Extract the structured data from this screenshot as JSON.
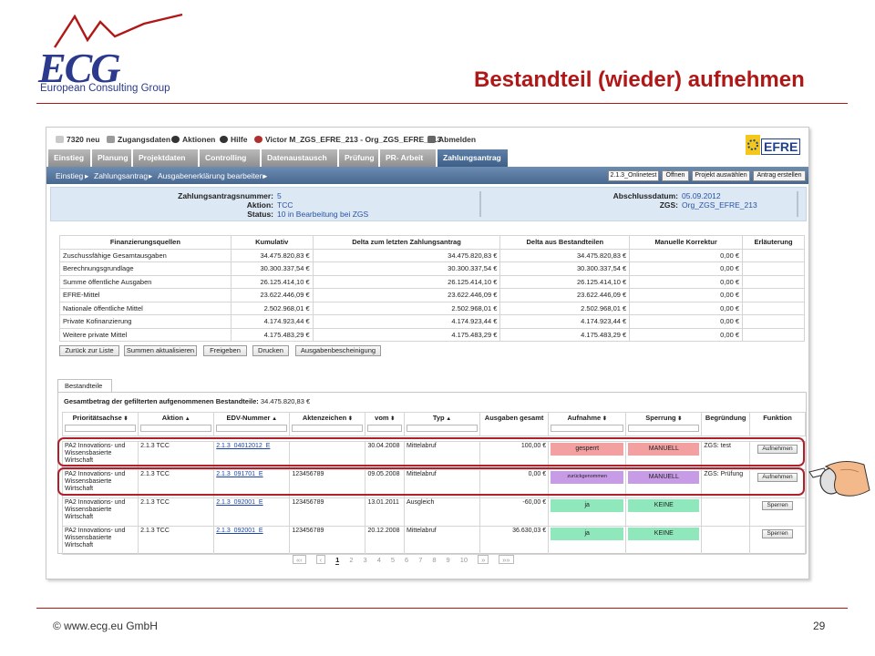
{
  "slide": {
    "title": "Bestandteil (wieder) aufnehmen",
    "footer_left": "© www.ecg.eu GmbH",
    "page_number": "29",
    "title_color": "#b01818"
  },
  "logo": {
    "letters": "ECG",
    "subtitle": "European Consulting Group"
  },
  "topbar": {
    "messages": "7320 neu",
    "zugangsdaten": "Zugangsdaten",
    "aktionen": "Aktionen",
    "hilfe": "Hilfe",
    "user": "Victor M_ZGS_EFRE_213 - Org_ZGS_EFRE_213",
    "abmelden": "Abmelden",
    "efre_logo": "EFRE"
  },
  "tabs": [
    {
      "label": "Einstieg"
    },
    {
      "label": "Planung"
    },
    {
      "label": "Projektdaten"
    },
    {
      "label": "Controlling"
    },
    {
      "label": "Datenaustausch"
    },
    {
      "label": "Prüfung"
    },
    {
      "label": "PR- Arbeit"
    },
    {
      "label": "Zahlungsantrag"
    }
  ],
  "breadcrumb": {
    "items": [
      "Einstieg",
      "Zahlungsantrag",
      "Ausgabenerklärung bearbeiten"
    ],
    "version_field": "2.1.3_Onlinetest",
    "btn_open": "Öffnen",
    "btn_select": "Projekt auswählen",
    "btn_create": "Antrag erstellen"
  },
  "info": {
    "nr_label": "Zahlungsantragsnummer:",
    "nr": "5",
    "aktion_label": "Aktion:",
    "aktion": "TCC",
    "status_label": "Status:",
    "status": "10 in Bearbeitung bei ZGS",
    "datum_label": "Abschlussdatum:",
    "datum": "05.09.2012",
    "zgs_label": "ZGS:",
    "zgs": "Org_ZGS_EFRE_213"
  },
  "finance": {
    "headers": [
      "Finanzierungsquellen",
      "Kumulativ",
      "Delta zum letzten Zahlungsantrag",
      "Delta aus Bestandteilen",
      "Manuelle Korrektur",
      "Erläuterung"
    ],
    "rows": [
      [
        "Zuschussfähige Gesamtausgaben",
        "34.475.820,83 €",
        "34.475.820,83 €",
        "34.475.820,83 €",
        "0,00 €",
        ""
      ],
      [
        "Berechnungsgrundlage",
        "30.300.337,54 €",
        "30.300.337,54 €",
        "30.300.337,54 €",
        "0,00 €",
        ""
      ],
      [
        "Summe öffentliche Ausgaben",
        "26.125.414,10 €",
        "26.125.414,10 €",
        "26.125.414,10 €",
        "0,00 €",
        ""
      ],
      [
        "EFRE-Mittel",
        "23.622.446,09 €",
        "23.622.446,09 €",
        "23.622.446,09 €",
        "0,00 €",
        ""
      ],
      [
        "Nationale öffentliche Mittel",
        "2.502.968,01 €",
        "2.502.968,01 €",
        "2.502.968,01 €",
        "0,00 €",
        ""
      ],
      [
        "Private Kofinanzierung",
        "4.174.923,44 €",
        "4.174.923,44 €",
        "4.174.923,44 €",
        "0,00 €",
        ""
      ],
      [
        "Weitere private Mittel",
        "4.175.483,29 €",
        "4.175.483,29 €",
        "4.175.483,29 €",
        "0,00 €",
        ""
      ]
    ]
  },
  "actions": {
    "back": "Zurück zur Liste",
    "sum": "Summen aktualisieren",
    "release": "Freigeben",
    "print": "Drucken",
    "cert": "Ausgabenbescheinigung"
  },
  "bestandteile": {
    "tab": "Bestandteile",
    "total_label": "Gesamtbetrag der gefilterten aufgenommenen Bestandteile:",
    "total": "34.475.820,83 €",
    "headers": [
      "Prioritätsachse",
      "Aktion",
      "EDV-Nummer",
      "Aktenzeichen",
      "vom",
      "Typ",
      "Ausgaben gesamt",
      "Aufnahme",
      "Sperrung",
      "Begründung",
      "Funktion"
    ],
    "rows": [
      {
        "achse": "PA2 Innovations- und Wissensbasierte Wirtschaft",
        "aktion": "2.1.3 TCC",
        "edv": "2.1.3_04012012_E",
        "az": "",
        "vom": "30.04.2008",
        "typ": "Mittelabruf",
        "ausgaben": "100,00 €",
        "aufnahme": "gesperrt",
        "aufnahme_color": "#f2a0a0",
        "sperrung": "MANUELL",
        "sperrung_color": "#f2a0a0",
        "begruendung": "ZGS: test",
        "funktion": "Aufnehmen"
      },
      {
        "achse": "PA2 Innovations- und Wissensbasierte Wirtschaft",
        "aktion": "2.1.3 TCC",
        "edv": "2.1.3_091701_E",
        "az": "123456789",
        "vom": "09.05.2008",
        "typ": "Mittelabruf",
        "ausgaben": "0,00 €",
        "aufnahme": "zurückgenommen",
        "aufnahme_color": "#c79be6",
        "sperrung": "MANUELL",
        "sperrung_color": "#c79be6",
        "begruendung": "ZGS: Prüfung",
        "funktion": "Aufnehmen"
      },
      {
        "achse": "PA2 Innovations- und Wissensbasierte Wirtschaft",
        "aktion": "2.1.3 TCC",
        "edv": "2.1.3_092001_E",
        "az": "123456789",
        "vom": "13.01.2011",
        "typ": "Ausgleich",
        "ausgaben": "-60,00 €",
        "aufnahme": "ja",
        "aufnahme_color": "#8fe8bc",
        "sperrung": "KEINE",
        "sperrung_color": "#8fe8bc",
        "begruendung": "",
        "funktion": "Sperren"
      },
      {
        "achse": "PA2 Innovations- und Wissensbasierte Wirtschaft",
        "aktion": "2.1.3 TCC",
        "edv": "2.1.3_092001_E",
        "az": "123456789",
        "vom": "20.12.2008",
        "typ": "Mittelabruf",
        "ausgaben": "36.630,03 €",
        "aufnahme": "ja",
        "aufnahme_color": "#8fe8bc",
        "sperrung": "KEINE",
        "sperrung_color": "#8fe8bc",
        "begruendung": "",
        "funktion": "Sperren"
      }
    ]
  },
  "pager": {
    "first": "«‹",
    "prev": "‹",
    "pages": [
      "1",
      "2",
      "3",
      "4",
      "5",
      "6",
      "7",
      "8",
      "9",
      "10"
    ],
    "current": "1",
    "next": "»",
    "last": "»»"
  }
}
